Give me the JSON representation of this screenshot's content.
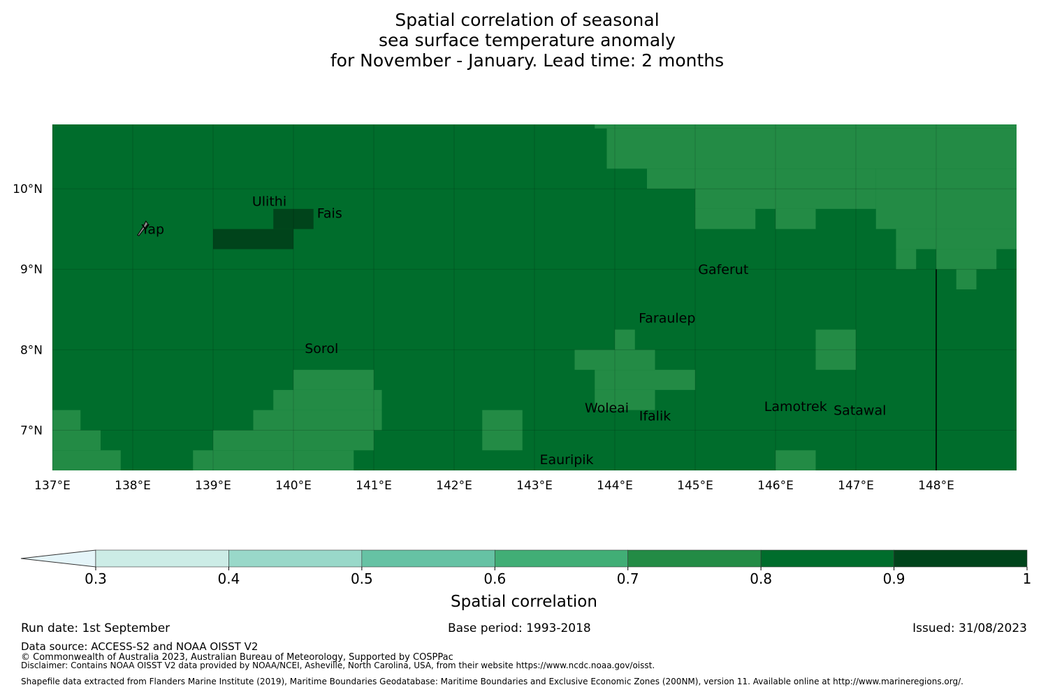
{
  "title": {
    "line1": "Spatial correlation of seasonal",
    "line2": "sea surface temperature anomaly",
    "line3": "for November - January. Lead time: 2 months"
  },
  "axes": {
    "x_ticks": [
      "137°E",
      "138°E",
      "139°E",
      "140°E",
      "141°E",
      "142°E",
      "143°E",
      "144°E",
      "145°E",
      "146°E",
      "147°E",
      "148°E"
    ],
    "x_values": [
      137,
      138,
      139,
      140,
      141,
      142,
      143,
      144,
      145,
      146,
      147,
      148
    ],
    "y_ticks": [
      "10°N",
      "9°N",
      "8°N",
      "7°N"
    ],
    "y_values": [
      10,
      9,
      8,
      7
    ],
    "lon_range": [
      137,
      149
    ],
    "lat_range": [
      6.5,
      10.8
    ]
  },
  "colors": {
    "c07_08": "#238b45",
    "c08_09": "#006d2c",
    "c09_10": "#00441b",
    "land": "#888888",
    "boundary": "#000000"
  },
  "places": [
    {
      "name": "Yap",
      "lon": 138.25,
      "lat": 9.5
    },
    {
      "name": "Ulithi",
      "lon": 139.7,
      "lat": 9.85
    },
    {
      "name": "Fais",
      "lon": 140.45,
      "lat": 9.7
    },
    {
      "name": "Gaferut",
      "lon": 145.35,
      "lat": 9.0
    },
    {
      "name": "Faraulep",
      "lon": 144.65,
      "lat": 8.4
    },
    {
      "name": "Sorol",
      "lon": 140.35,
      "lat": 8.02
    },
    {
      "name": "Woleai",
      "lon": 143.9,
      "lat": 7.28
    },
    {
      "name": "Ifalik",
      "lon": 144.5,
      "lat": 7.18
    },
    {
      "name": "Lamotrek",
      "lon": 146.25,
      "lat": 7.3
    },
    {
      "name": "Satawal",
      "lon": 147.05,
      "lat": 7.25
    },
    {
      "name": "Eauripik",
      "lon": 143.4,
      "lat": 6.64
    }
  ],
  "grid_cells": {
    "cell_deg": 0.25,
    "high_0_9_1_0": [
      [
        139.0,
        9.25,
        140.0,
        9.5
      ],
      [
        139.75,
        9.5,
        140.25,
        9.75
      ]
    ],
    "mid_0_7_0_8": [
      [
        143.75,
        10.8,
        149,
        10.75
      ],
      [
        143.9,
        10.75,
        149,
        10.25
      ],
      [
        144.4,
        10.25,
        147.25,
        10.0
      ],
      [
        145.0,
        10.0,
        147.25,
        9.75
      ],
      [
        145.0,
        9.75,
        145.75,
        9.5
      ],
      [
        146.0,
        9.75,
        146.5,
        9.5
      ],
      [
        147.25,
        10.25,
        149,
        9.5
      ],
      [
        147.5,
        9.5,
        149,
        9.25
      ],
      [
        147.5,
        9.25,
        147.75,
        9.0
      ],
      [
        148.0,
        9.25,
        148.75,
        9.0
      ],
      [
        148.25,
        9.0,
        148.5,
        8.75
      ],
      [
        144.0,
        8.25,
        144.25,
        8.0
      ],
      [
        143.5,
        8.0,
        144.5,
        7.75
      ],
      [
        143.75,
        7.75,
        145.0,
        7.5
      ],
      [
        143.75,
        7.5,
        144.5,
        7.25
      ],
      [
        146.5,
        8.25,
        147.0,
        7.75
      ],
      [
        140.0,
        7.75,
        141.0,
        7.5
      ],
      [
        139.75,
        7.5,
        141.1,
        7.25
      ],
      [
        139.5,
        7.25,
        141.1,
        7.0
      ],
      [
        139.0,
        7.0,
        141.0,
        6.75
      ],
      [
        138.75,
        6.75,
        140.75,
        6.5
      ],
      [
        137,
        7.25,
        137.35,
        7.0
      ],
      [
        137,
        7.0,
        137.6,
        6.75
      ],
      [
        137,
        6.75,
        137.85,
        6.5
      ],
      [
        142.35,
        7.25,
        142.85,
        6.75
      ],
      [
        146.0,
        6.75,
        146.5,
        6.5
      ]
    ]
  },
  "colorbar": {
    "ticks": [
      "0.3",
      "0.4",
      "0.5",
      "0.6",
      "0.7",
      "0.8",
      "0.9",
      "1"
    ],
    "colors": [
      "#e5f5f9",
      "#ccece6",
      "#99d8c9",
      "#66c2a4",
      "#41ae76",
      "#238b45",
      "#006d2c",
      "#00441b"
    ],
    "label": "Spatial correlation"
  },
  "footer": {
    "run_date": "Run date: 1st September",
    "base_period": "Base period: 1993-2018",
    "issued": "Issued: 31/08/2023",
    "data_source": "Data source: ACCESS-S2 and NOAA OISST V2",
    "copyright": "© Commonwealth of Australia 2023, Australian Bureau of Meteorology, Supported by COSPPac",
    "disclaimer": "Disclaimer: Contains NOAA OISST V2 data provided by NOAA/NCEI, Asheville, North Carolina, USA, from their website https://www.ncdc.noaa.gov/oisst.",
    "shapefile": "Shapefile data extracted from Flanders Marine Institute (2019), Maritime Boundaries Geodatabase: Maritime Boundaries and Exclusive Economic Zones (200NM), version 11. Available online at http://www.marineregions.org/."
  }
}
